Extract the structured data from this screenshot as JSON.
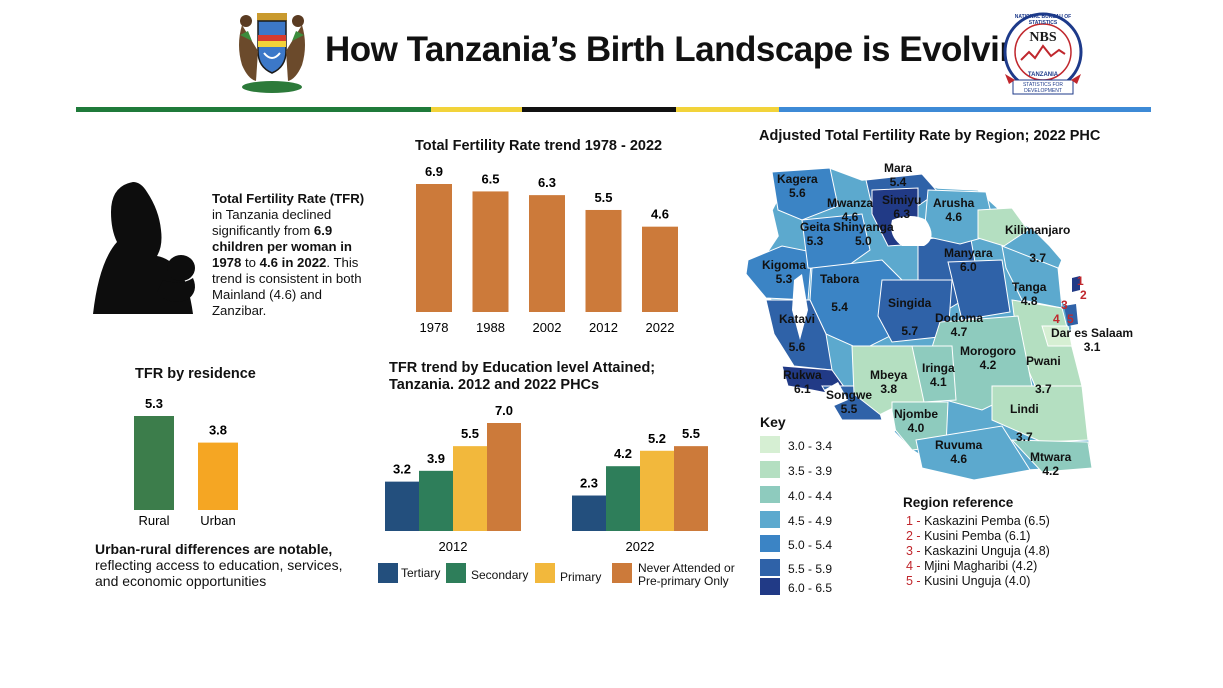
{
  "header": {
    "title": "How Tanzania’s Birth Landscape is Evolving",
    "nbs_logo_text": [
      "NATIONAL BUREAU OF STATISTICS",
      "NBS",
      "TANZANIA",
      "STATISTICS FOR DEVELOPMENT"
    ]
  },
  "colors": {
    "green_stripe": "#1f7a3a",
    "yellow_stripe": "#f2d33a",
    "black_stripe": "#111111",
    "blue_stripe": "#3d8ad6",
    "tfr_bar": "#cc7a3a",
    "rural": "#3c7d4b",
    "urban": "#f5a623",
    "tertiary": "#234f7d",
    "secondary": "#2e7e5a",
    "primary": "#f2b83c",
    "never": "#cc7a3a"
  },
  "intro": {
    "line_lead": "Total Fertility Rate (TFR)",
    "line_mid": " in Tanzania declined significantly from ",
    "bold_a": "6.9 children per woman in 1978",
    "mid2": " to ",
    "bold_b": "4.6 in 2022",
    "tail": ".  This trend is consistent in both Mainland (4.6) and Zanzibar."
  },
  "residence": {
    "title": "TFR by residence",
    "note_bold": "Urban-rural differences are notable,",
    "note_rest": "reflecting access to education, services, and economic opportunities"
  },
  "education": {
    "title_line1": "TFR trend by Education level Attained;",
    "title_line2": "Tanzania. 2012 and 2022 PHCs",
    "legend": [
      "Tertiary",
      "Secondary",
      "Primary",
      "Never Attended or",
      "Pre-primary Only"
    ]
  },
  "map": {
    "title": "Adjusted Total Fertility Rate by Region; 2022 PHC",
    "key_title": "Key",
    "key": [
      {
        "label": "3.0 - 3.4",
        "color": "#d6efd3"
      },
      {
        "label": "3.5 - 3.9",
        "color": "#b4dfc1"
      },
      {
        "label": "4.0 - 4.4",
        "color": "#8ecbbe"
      },
      {
        "label": "4.5 - 4.9",
        "color": "#5ca9ce"
      },
      {
        "label": "5.0 - 5.4",
        "color": "#3b84c5"
      },
      {
        "label": "5.5 - 5.9",
        "color": "#2f62a8"
      },
      {
        "label": "6.0 - 6.5",
        "color": "#213a86"
      }
    ],
    "regions": [
      {
        "name": "Kagera",
        "value": "5.6"
      },
      {
        "name": "Mara",
        "value": "5.4"
      },
      {
        "name": "Mwanza",
        "value": "4.6"
      },
      {
        "name": "Simiyu",
        "value": "6.3"
      },
      {
        "name": "Geita",
        "value": "5.3"
      },
      {
        "name": "Shinyanga",
        "value": "5.0"
      },
      {
        "name": "Arusha",
        "value": "4.6"
      },
      {
        "name": "Kilimanjaro",
        "value": "3.7"
      },
      {
        "name": "Kigoma",
        "value": "5.3"
      },
      {
        "name": "Tabora",
        "value": "5.4"
      },
      {
        "name": "Manyara",
        "value": "6.0"
      },
      {
        "name": "Tanga",
        "value": "4.8"
      },
      {
        "name": "Singida",
        "value": "5.7"
      },
      {
        "name": "Katavi",
        "value": "5.6"
      },
      {
        "name": "Dodoma",
        "value": "4.7"
      },
      {
        "name": "Dar es Salaam",
        "value": "3.1"
      },
      {
        "name": "Morogoro",
        "value": "4.2"
      },
      {
        "name": "Pwani",
        "value": "3.7"
      },
      {
        "name": "Rukwa",
        "value": "6.1"
      },
      {
        "name": "Mbeya",
        "value": "3.8"
      },
      {
        "name": "Iringa",
        "value": "4.1"
      },
      {
        "name": "Songwe",
        "value": "5.5"
      },
      {
        "name": "Njombe",
        "value": "4.0"
      },
      {
        "name": "Lindi",
        "value": "3.7"
      },
      {
        "name": "Ruvuma",
        "value": "4.6"
      },
      {
        "name": "Mtwara",
        "value": "4.2"
      }
    ],
    "island_numbers": [
      "1",
      "2",
      "3",
      "4",
      "5"
    ],
    "ref_title": "Region reference",
    "ref": [
      {
        "n": "1 -",
        "text": " Kaskazini Pemba (6.5)"
      },
      {
        "n": "2 -",
        "text": " Kusini Pemba (6.1)"
      },
      {
        "n": "3 -",
        "text": " Kaskazini Unguja (4.8)"
      },
      {
        "n": "4 -",
        "text": " Mjini Magharibi (4.2)"
      },
      {
        "n": "5 -",
        "text": " Kusini Unguja (4.0)"
      }
    ]
  },
  "chart_data": [
    {
      "type": "bar",
      "title": "Total Fertility Rate trend 1978 - 2022",
      "categories": [
        "1978",
        "1988",
        "2002",
        "2012",
        "2022"
      ],
      "values": [
        6.9,
        6.5,
        6.3,
        5.5,
        4.6
      ],
      "ylim": [
        0,
        6.9
      ],
      "grid": false
    },
    {
      "type": "bar",
      "title": "TFR by residence",
      "categories": [
        "Rural",
        "Urban"
      ],
      "values": [
        5.3,
        3.8
      ],
      "ylim": [
        0,
        5.3
      ],
      "grid": false
    },
    {
      "type": "bar",
      "title": "TFR trend by Education level Attained; Tanzania. 2012 and 2022 PHCs",
      "categories": [
        "2012",
        "2022"
      ],
      "series": [
        {
          "name": "Tertiary",
          "values": [
            3.2,
            2.3
          ]
        },
        {
          "name": "Secondary",
          "values": [
            3.9,
            4.2
          ]
        },
        {
          "name": "Primary",
          "values": [
            5.5,
            5.2
          ]
        },
        {
          "name": "Never Attended or Pre-primary Only",
          "values": [
            7.0,
            5.5
          ]
        }
      ],
      "ylim": [
        0,
        7.0
      ],
      "legend": "bottom",
      "grid": false
    }
  ]
}
